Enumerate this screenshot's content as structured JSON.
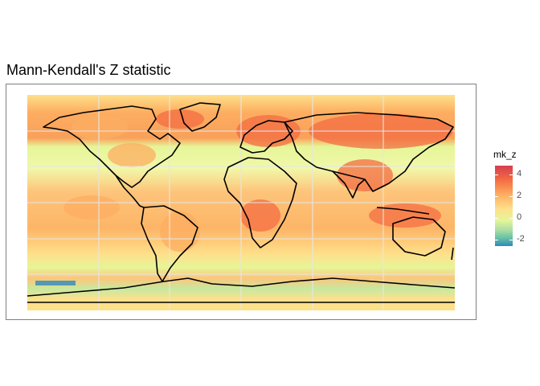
{
  "title": "Mann-Kendall's Z statistic",
  "legend": {
    "title": "mk_z",
    "ticks": [
      4,
      2,
      0,
      -2
    ],
    "range": [
      -2.6,
      4.8
    ],
    "colors": [
      "#3288bd",
      "#66c2a5",
      "#abdda4",
      "#e6f598",
      "#fee08b",
      "#fdae61",
      "#f46d43",
      "#d53e4f"
    ]
  },
  "map": {
    "extent": {
      "lon": [
        -180,
        180
      ],
      "lat": [
        -90,
        90
      ]
    },
    "grid_lines": {
      "lon": [
        -120,
        -60,
        0,
        60,
        120
      ],
      "lat": [
        -60,
        -30,
        0,
        30,
        60
      ]
    },
    "grid_color": "#e6e6e6",
    "coastline_color": "#000000"
  }
}
